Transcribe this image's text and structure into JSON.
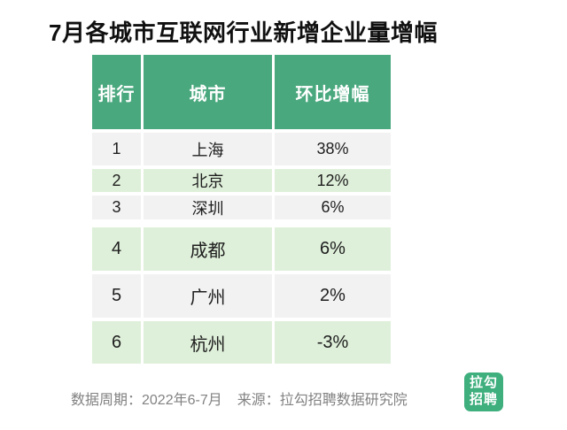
{
  "title": "7月各城市互联网行业新增企业量增幅",
  "table": {
    "headers": [
      "排行",
      "城市",
      "环比增幅"
    ],
    "rows": [
      {
        "rank": "1",
        "city": "上海",
        "change": "38%"
      },
      {
        "rank": "2",
        "city": "北京",
        "change": "12%"
      },
      {
        "rank": "3",
        "city": "深圳",
        "change": "6%"
      },
      {
        "rank": "4",
        "city": "成都",
        "change": "6%"
      },
      {
        "rank": "5",
        "city": "广州",
        "change": "2%"
      },
      {
        "rank": "6",
        "city": "杭州",
        "change": "-3%"
      }
    ]
  },
  "footer": {
    "period": "数据周期：2022年6-7月",
    "source": "来源：拉勾招聘数据研究院"
  },
  "logo": {
    "line1": "拉勾",
    "line2": "招聘"
  },
  "colors": {
    "header_green": "#4AA87E",
    "row_green": "#DFF0DA",
    "row_gray": "#F2F2F3",
    "logo_green": "#3FAF7E",
    "footer_text": "#828282"
  },
  "chart_data": {
    "type": "table",
    "title": "7月各城市互联网行业新增企业量增幅",
    "columns": [
      "排行",
      "城市",
      "环比增幅"
    ],
    "categories": [
      "上海",
      "北京",
      "深圳",
      "成都",
      "广州",
      "杭州"
    ],
    "values_pct": [
      38,
      12,
      6,
      6,
      2,
      -3
    ],
    "period": "2022年6-7月",
    "source": "拉勾招聘数据研究院"
  }
}
